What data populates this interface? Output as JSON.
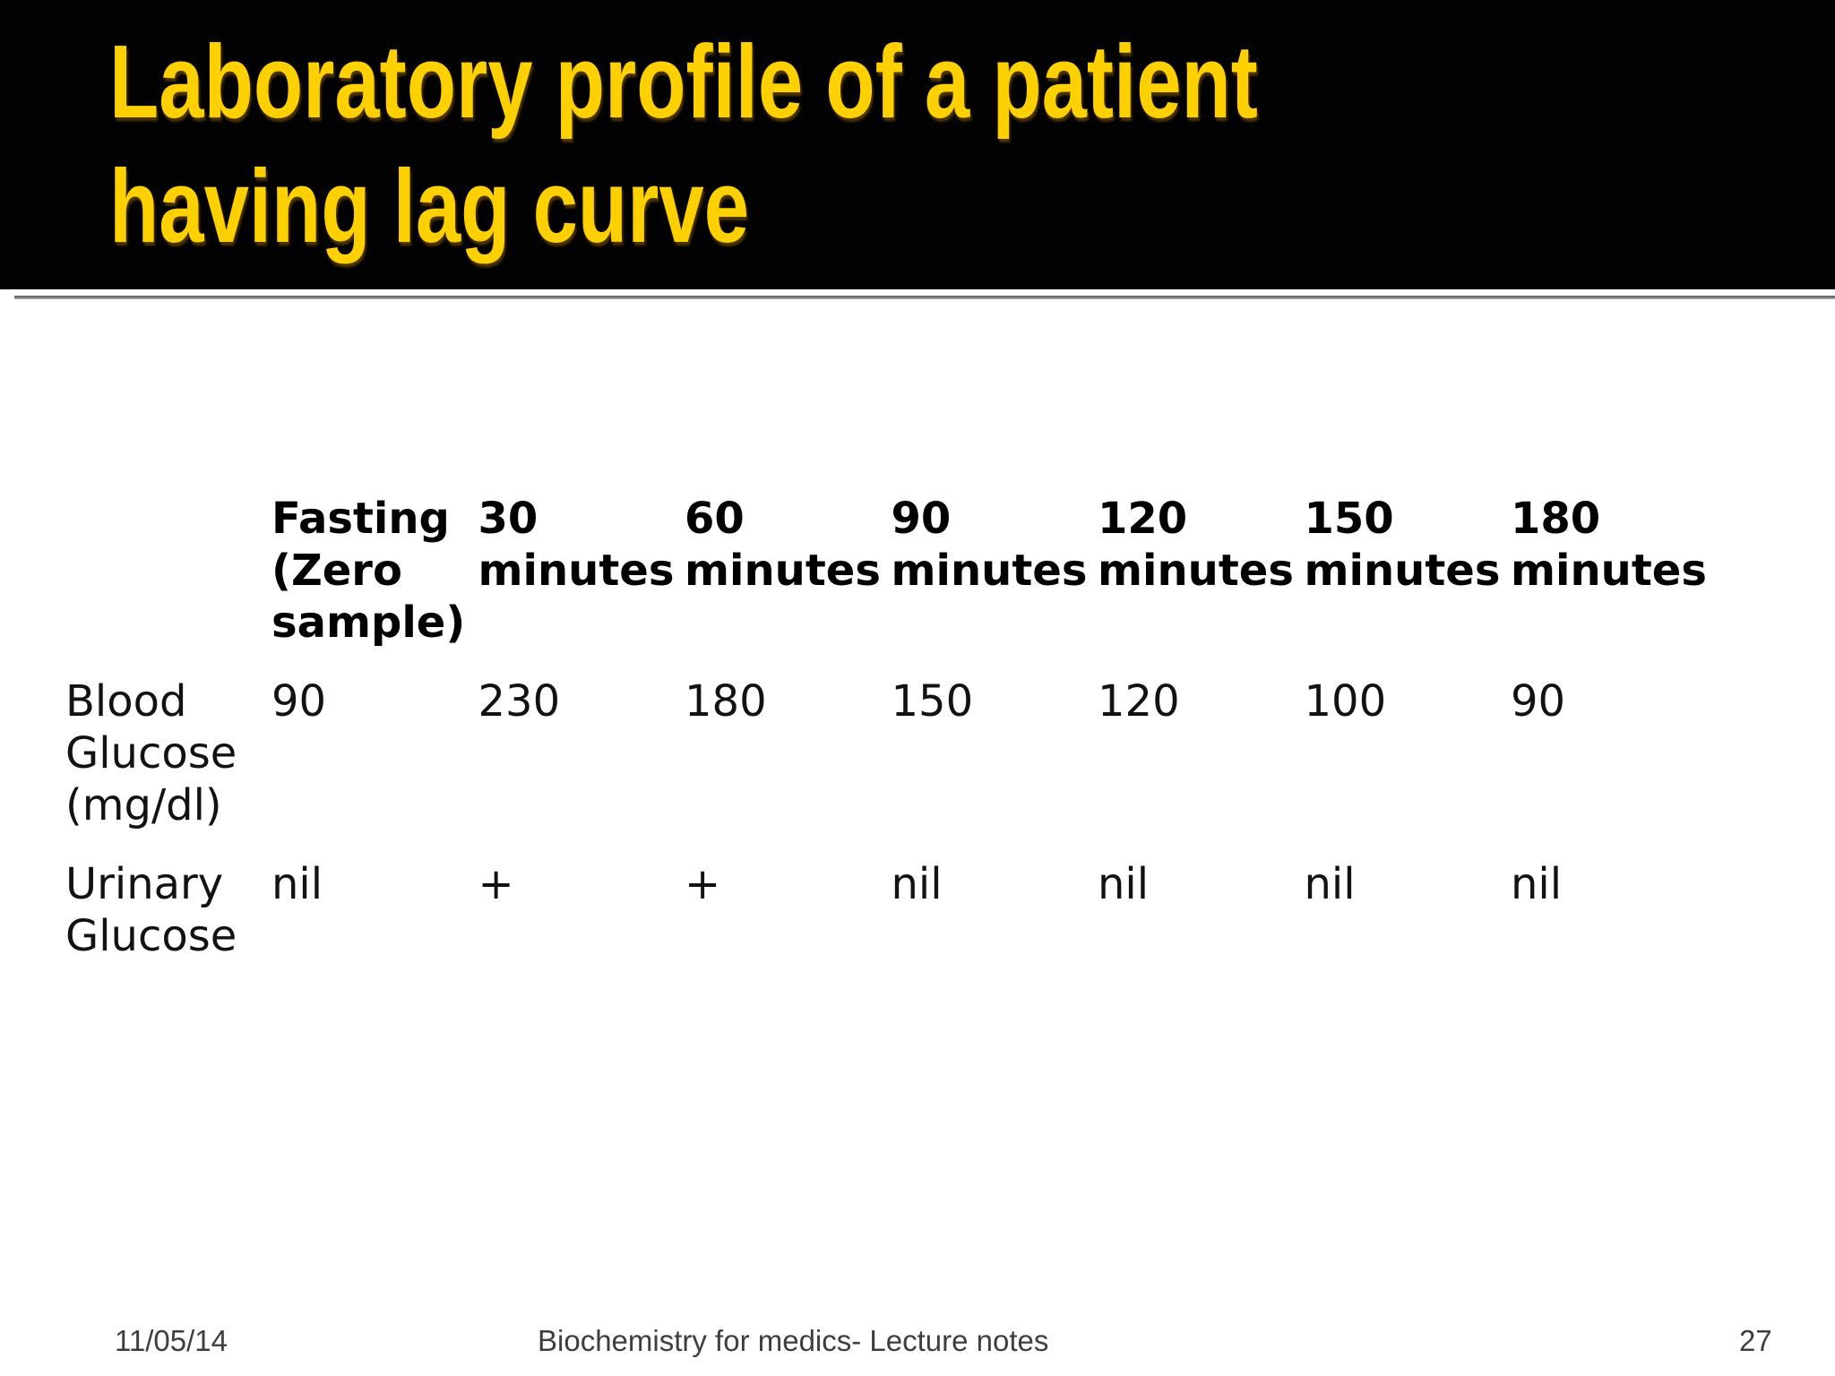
{
  "slide_title": {
    "line1": "Laboratory profile of a patient",
    "line2": "having lag curve"
  },
  "table": {
    "columns": [
      "Fasting (Zero sample)",
      "30 minutes",
      "60 minutes",
      "90 minutes",
      "120 minutes",
      "150 minutes",
      "180 minutes"
    ],
    "rows": [
      {
        "label": "Blood Glucose (mg/dl)",
        "values": [
          "90",
          "230",
          "180",
          "150",
          "120",
          "100",
          "90"
        ]
      },
      {
        "label": "Urinary Glucose",
        "values": [
          "nil",
          "+",
          "+",
          "nil",
          "nil",
          "nil",
          "nil"
        ]
      }
    ]
  },
  "footer": {
    "date": "11/05/14",
    "center_text": "Biochemistry for medics- Lecture notes",
    "page_number": "27"
  },
  "colors": {
    "title_text": "#FCD001",
    "header_background": "#000000",
    "table_text": "#121212",
    "footer_text": "#3E3E3E"
  }
}
